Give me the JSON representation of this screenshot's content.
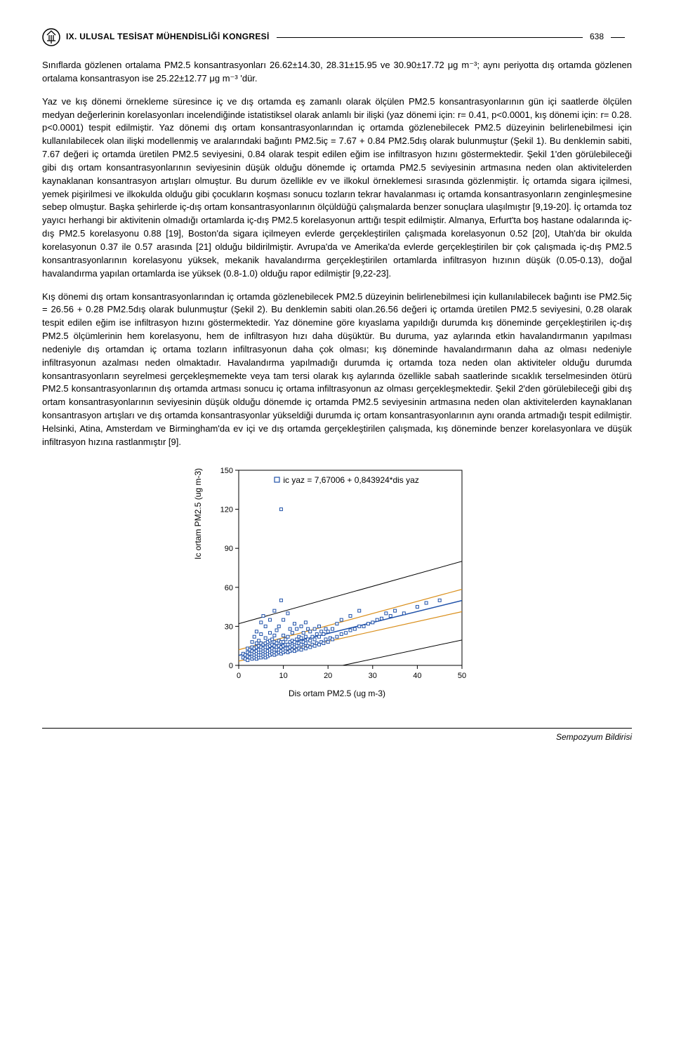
{
  "header": {
    "conference": "IX. ULUSAL TESİSAT MÜHENDİSLİĞİ KONGRESİ",
    "page": "638"
  },
  "paragraphs": {
    "p1": "Sınıflarda gözlenen ortalama PM2.5 konsantrasyonları 26.62±14.30, 28.31±15.95 ve 30.90±17.72 μg m⁻³; aynı periyotta dış ortamda gözlenen ortalama konsantrasyon ise 25.22±12.77 μg m⁻³ 'dür.",
    "p2": "Yaz ve kış dönemi örnekleme süresince iç ve dış ortamda eş zamanlı olarak ölçülen PM2.5 konsantrasyonlarının gün içi saatlerde ölçülen medyan değerlerinin korelasyonları incelendiğinde istatistiksel olarak anlamlı bir ilişki (yaz dönemi için: r= 0.41, p<0.0001, kış dönemi için: r= 0.28. p<0.0001) tespit edilmiştir. Yaz dönemi dış ortam konsantrasyonlarından iç ortamda gözlenebilecek PM2.5 düzeyinin belirlenebilmesi için kullanılabilecek olan ilişki modellenmiş ve aralarındaki bağıntı PM2.5iç = 7.67 + 0.84 PM2.5dış olarak bulunmuştur (Şekil 1). Bu denklemin sabiti, 7.67 değeri iç ortamda üretilen PM2.5 seviyesini, 0.84 olarak tespit edilen eğim ise infiltrasyon hızını göstermektedir. Şekil 1'den görülebileceği gibi dış ortam konsantrasyonlarının seviyesinin düşük olduğu dönemde iç ortamda PM2.5 seviyesinin artmasına neden olan aktivitelerden kaynaklanan konsantrasyon artışları olmuştur. Bu durum özellikle ev ve ilkokul örneklemesi sırasında gözlenmiştir. İç ortamda sigara içilmesi, yemek pişirilmesi ve ilkokulda olduğu gibi çocukların koşması sonucu tozların tekrar havalanması iç ortamda konsantrasyonların zenginleşmesine sebep olmuştur. Başka şehirlerde iç-dış ortam konsantrasyonlarının ölçüldüğü çalışmalarda benzer sonuçlara ulaşılmıştır [9,19-20]. İç ortamda toz yayıcı herhangi bir aktivitenin olmadığı ortamlarda iç-dış PM2.5 korelasyonun arttığı tespit edilmiştir. Almanya, Erfurt'ta boş hastane odalarında iç-dış PM2.5 korelasyonu 0.88 [19], Boston'da sigara içilmeyen evlerde gerçekleştirilen çalışmada korelasyonun 0.52 [20], Utah'da bir okulda korelasyonun 0.37 ile 0.57 arasında [21] olduğu bildirilmiştir. Avrupa'da ve Amerika'da evlerde gerçekleştirilen bir çok çalışmada iç-dış PM2.5 konsantrasyonlarının korelasyonu yüksek, mekanik havalandırma gerçekleştirilen ortamlarda infiltrasyon hızının düşük (0.05-0.13), doğal havalandırma yapılan ortamlarda ise yüksek (0.8-1.0) olduğu rapor edilmiştir [9,22-23].",
    "p3": "Kış dönemi dış ortam konsantrasyonlarından iç ortamda gözlenebilecek PM2.5 düzeyinin belirlenebilmesi için kullanılabilecek bağıntı ise PM2.5iç = 26.56 + 0.28 PM2.5dış olarak bulunmuştur (Şekil 2). Bu denklemin sabiti olan.26.56 değeri iç ortamda üretilen PM2.5 seviyesini, 0.28 olarak tespit edilen eğim ise infiltrasyon hızını göstermektedir. Yaz dönemine göre kıyaslama yapıldığı durumda kış döneminde gerçekleştirilen iç-dış PM2.5 ölçümlerinin hem korelasyonu, hem de infiltrasyon hızı daha düşüktür. Bu duruma, yaz aylarında etkin havalandırmanın yapılması nedeniyle dış ortamdan iç ortama tozların infiltrasyonun daha çok olması; kış döneminde havalandırmanın daha az olması nedeniyle infiltrasyonun azalması neden olmaktadır. Havalandırma yapılmadığı durumda iç ortamda toza neden olan aktiviteler olduğu durumda konsantrasyonların seyrelmesi gerçekleşmemekte veya tam tersi olarak kış aylarında özellikle sabah saatlerinde sıcaklık terselmesinden ötürü PM2.5 konsantrasyonlarının dış ortamda artması sonucu iç ortama infiltrasyonun az olması gerçekleşmektedir. Şekil 2'den görülebileceği gibi dış ortam konsantrasyonlarının seviyesinin düşük olduğu dönemde iç ortamda PM2.5 seviyesinin artmasına neden olan aktivitelerden kaynaklanan konsantrasyon artışları ve dış ortamda konsantrasyonlar yükseldiği durumda iç ortam konsantrasyonlarının aynı oranda artmadığı tespit edilmiştir.  Helsinki, Atina, Amsterdam ve Birmingham'da ev içi ve dış ortamda gerçekleştirilen çalışmada, kış döneminde benzer korelasyonlara ve düşük infiltrasyon hızına rastlanmıştır [9]."
  },
  "chart": {
    "type": "scatter",
    "equation": "ic yaz = 7,67006 + 0,843924*dis yaz",
    "xlabel": "Dis ortam PM2.5 (ug m-3)",
    "ylabel": "Ic ortam PM2.5 (ug m-3)",
    "xlim": [
      0,
      50
    ],
    "ylim": [
      0,
      150
    ],
    "xtick_step": 10,
    "ytick_step": 30,
    "xticks": [
      0,
      10,
      20,
      30,
      40,
      50
    ],
    "yticks": [
      0,
      30,
      60,
      90,
      120,
      150
    ],
    "background_color": "#ffffff",
    "axis_color": "#000000",
    "tick_fontsize": 11,
    "label_fontsize": 12,
    "marker_color": "#1e50a8",
    "marker_fill": "#ffffff",
    "marker_size": 4,
    "marker_style": "square",
    "fit_line_color": "#1e50a8",
    "fit_line_width": 1.5,
    "ci_line_color": "#d98e1a",
    "ci_line_width": 1.2,
    "pi_line_color": "#000000",
    "pi_line_width": 1,
    "fit": {
      "intercept": 7.67,
      "slope": 0.844
    },
    "ci_upper": {
      "intercept": 12.0,
      "slope": 0.93
    },
    "ci_lower": {
      "intercept": 3.3,
      "slope": 0.76
    },
    "pi_upper": {
      "intercept": 32.0,
      "slope": 0.96
    },
    "pi_lower": {
      "intercept": -17.0,
      "slope": 0.73
    },
    "points": [
      [
        1,
        6
      ],
      [
        1,
        9
      ],
      [
        1.5,
        5
      ],
      [
        1.5,
        8
      ],
      [
        2,
        4
      ],
      [
        2,
        7
      ],
      [
        2,
        10
      ],
      [
        2,
        13
      ],
      [
        2.5,
        6
      ],
      [
        2.5,
        9
      ],
      [
        2.5,
        12
      ],
      [
        3,
        5
      ],
      [
        3,
        7
      ],
      [
        3,
        9
      ],
      [
        3,
        11
      ],
      [
        3,
        14
      ],
      [
        3,
        18
      ],
      [
        3.5,
        6
      ],
      [
        3.5,
        8
      ],
      [
        3.5,
        10
      ],
      [
        3.5,
        13
      ],
      [
        3.5,
        22
      ],
      [
        4,
        5
      ],
      [
        4,
        7
      ],
      [
        4,
        9
      ],
      [
        4,
        11
      ],
      [
        4,
        14
      ],
      [
        4,
        17
      ],
      [
        4,
        26
      ],
      [
        4.5,
        6
      ],
      [
        4.5,
        8
      ],
      [
        4.5,
        10
      ],
      [
        4.5,
        12
      ],
      [
        4.5,
        15
      ],
      [
        4.5,
        19
      ],
      [
        5,
        6
      ],
      [
        5,
        8
      ],
      [
        5,
        10
      ],
      [
        5,
        12
      ],
      [
        5,
        14
      ],
      [
        5,
        17
      ],
      [
        5,
        24
      ],
      [
        5,
        33
      ],
      [
        5.5,
        7
      ],
      [
        5.5,
        9
      ],
      [
        5.5,
        11
      ],
      [
        5.5,
        13
      ],
      [
        5.5,
        16
      ],
      [
        5.5,
        38
      ],
      [
        6,
        6
      ],
      [
        6,
        8
      ],
      [
        6,
        10
      ],
      [
        6,
        12
      ],
      [
        6,
        14
      ],
      [
        6,
        17
      ],
      [
        6,
        21
      ],
      [
        6,
        30
      ],
      [
        6.5,
        7
      ],
      [
        6.5,
        9
      ],
      [
        6.5,
        11
      ],
      [
        6.5,
        14
      ],
      [
        6.5,
        18
      ],
      [
        7,
        8
      ],
      [
        7,
        10
      ],
      [
        7,
        12
      ],
      [
        7,
        15
      ],
      [
        7,
        19
      ],
      [
        7,
        25
      ],
      [
        7,
        35
      ],
      [
        7.5,
        9
      ],
      [
        7.5,
        11
      ],
      [
        7.5,
        13
      ],
      [
        7.5,
        16
      ],
      [
        7.5,
        20
      ],
      [
        8,
        8
      ],
      [
        8,
        10
      ],
      [
        8,
        12
      ],
      [
        8,
        15
      ],
      [
        8,
        18
      ],
      [
        8,
        23
      ],
      [
        8,
        42
      ],
      [
        8.5,
        9
      ],
      [
        8.5,
        12
      ],
      [
        8.5,
        14
      ],
      [
        8.5,
        17
      ],
      [
        8.5,
        27
      ],
      [
        9,
        10
      ],
      [
        9,
        12
      ],
      [
        9,
        15
      ],
      [
        9,
        19
      ],
      [
        9,
        30
      ],
      [
        9.5,
        9
      ],
      [
        9.5,
        11
      ],
      [
        9.5,
        14
      ],
      [
        9.5,
        18
      ],
      [
        9.5,
        50
      ],
      [
        9.5,
        120
      ],
      [
        10,
        10
      ],
      [
        10,
        12
      ],
      [
        10,
        15
      ],
      [
        10,
        18
      ],
      [
        10,
        23
      ],
      [
        10,
        35
      ],
      [
        10.5,
        11
      ],
      [
        10.5,
        13
      ],
      [
        10.5,
        16
      ],
      [
        10.5,
        20
      ],
      [
        11,
        10
      ],
      [
        11,
        13
      ],
      [
        11,
        16
      ],
      [
        11,
        22
      ],
      [
        11,
        40
      ],
      [
        11.5,
        11
      ],
      [
        11.5,
        14
      ],
      [
        11.5,
        18
      ],
      [
        11.5,
        28
      ],
      [
        12,
        12
      ],
      [
        12,
        15
      ],
      [
        12,
        19
      ],
      [
        12,
        25
      ],
      [
        12.5,
        11
      ],
      [
        12.5,
        14
      ],
      [
        12.5,
        18
      ],
      [
        12.5,
        32
      ],
      [
        13,
        12
      ],
      [
        13,
        15
      ],
      [
        13,
        20
      ],
      [
        13,
        28
      ],
      [
        13.5,
        13
      ],
      [
        13.5,
        17
      ],
      [
        13.5,
        22
      ],
      [
        14,
        12
      ],
      [
        14,
        16
      ],
      [
        14,
        21
      ],
      [
        14,
        30
      ],
      [
        14.5,
        14
      ],
      [
        14.5,
        18
      ],
      [
        14.5,
        25
      ],
      [
        15,
        13
      ],
      [
        15,
        17
      ],
      [
        15,
        22
      ],
      [
        15,
        33
      ],
      [
        15.5,
        15
      ],
      [
        15.5,
        20
      ],
      [
        15.5,
        28
      ],
      [
        16,
        14
      ],
      [
        16,
        19
      ],
      [
        16,
        26
      ],
      [
        16.5,
        16
      ],
      [
        16.5,
        22
      ],
      [
        17,
        15
      ],
      [
        17,
        20
      ],
      [
        17,
        28
      ],
      [
        17.5,
        17
      ],
      [
        17.5,
        24
      ],
      [
        18,
        16
      ],
      [
        18,
        22
      ],
      [
        18,
        30
      ],
      [
        18.5,
        18
      ],
      [
        18.5,
        26
      ],
      [
        19,
        17
      ],
      [
        19,
        24
      ],
      [
        19.5,
        20
      ],
      [
        19.5,
        28
      ],
      [
        20,
        18
      ],
      [
        20,
        26
      ],
      [
        20.5,
        21
      ],
      [
        21,
        20
      ],
      [
        21,
        28
      ],
      [
        22,
        22
      ],
      [
        22,
        32
      ],
      [
        23,
        24
      ],
      [
        23,
        35
      ],
      [
        24,
        25
      ],
      [
        25,
        27
      ],
      [
        25,
        38
      ],
      [
        26,
        28
      ],
      [
        27,
        30
      ],
      [
        27,
        42
      ],
      [
        28,
        30
      ],
      [
        29,
        32
      ],
      [
        30,
        33
      ],
      [
        31,
        35
      ],
      [
        32,
        36
      ],
      [
        33,
        40
      ],
      [
        34,
        38
      ],
      [
        35,
        42
      ],
      [
        37,
        40
      ],
      [
        40,
        45
      ],
      [
        42,
        48
      ],
      [
        45,
        50
      ]
    ]
  },
  "footer": {
    "text": "Sempozyum Bildirisi"
  }
}
